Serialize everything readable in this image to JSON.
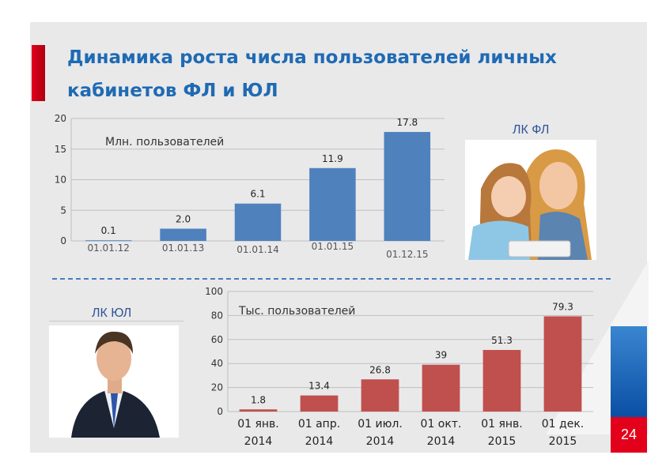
{
  "slide": {
    "title_line1": "Динамика роста числа пользователей личных",
    "title_line2": "кабинетов ФЛ и ЮЛ",
    "label_fl": "ЛК ФЛ",
    "label_ul": "ЛК ЮЛ",
    "page_number": "24"
  },
  "colors": {
    "title": "#1f6ab3",
    "chart1_bar": "#4f81bd",
    "chart2_bar": "#c0504d",
    "accent_red": "#e3001b",
    "accent_blue": "#1565c0"
  },
  "chart_data": [
    {
      "type": "bar",
      "title": "Млн. пользователей",
      "categories": [
        "01.01.12",
        "01.01.13",
        "01.01.14",
        "01.01.15",
        "01.12.15"
      ],
      "values": [
        0.1,
        2.0,
        6.1,
        11.9,
        17.8
      ],
      "value_labels": [
        "0.1",
        "2.0",
        "6.1",
        "11.9",
        "17.8"
      ],
      "ylim": [
        0,
        20
      ],
      "yticks": [
        "0",
        "5",
        "10",
        "15",
        "20"
      ],
      "grid": true
    },
    {
      "type": "bar",
      "title": "Тыс. пользователей",
      "categories": [
        [
          "01 янв.",
          "2014"
        ],
        [
          "01 апр.",
          "2014"
        ],
        [
          "01 июл.",
          "2014"
        ],
        [
          "01 окт.",
          "2014"
        ],
        [
          "01 янв.",
          "2015"
        ],
        [
          "01 дек.",
          "2015"
        ]
      ],
      "values": [
        1.8,
        13.4,
        26.8,
        39,
        51.3,
        79.3
      ],
      "value_labels": [
        "1.8",
        "13.4",
        "26.8",
        "39",
        "51.3",
        "79.3"
      ],
      "ylim": [
        0,
        100
      ],
      "yticks": [
        "0",
        "20",
        "40",
        "60",
        "80",
        "100"
      ],
      "grid": true
    }
  ]
}
